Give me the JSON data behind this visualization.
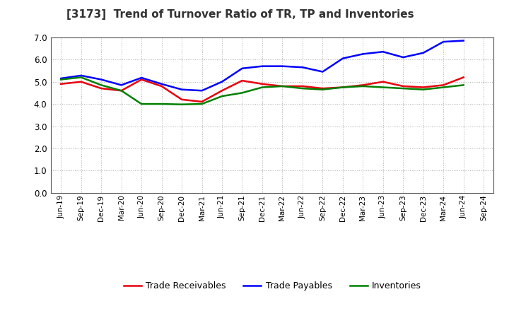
{
  "title": "[3173]  Trend of Turnover Ratio of TR, TP and Inventories",
  "labels": [
    "Jun-19",
    "Sep-19",
    "Dec-19",
    "Mar-20",
    "Jun-20",
    "Sep-20",
    "Dec-20",
    "Mar-21",
    "Jun-21",
    "Sep-21",
    "Dec-21",
    "Mar-22",
    "Jun-22",
    "Sep-22",
    "Dec-22",
    "Mar-23",
    "Jun-23",
    "Sep-23",
    "Dec-23",
    "Mar-24",
    "Jun-24",
    "Sep-24"
  ],
  "trade_receivables": [
    4.9,
    5.0,
    4.7,
    4.6,
    5.1,
    4.8,
    4.2,
    4.1,
    4.6,
    5.05,
    4.9,
    4.8,
    4.8,
    4.7,
    4.75,
    4.85,
    5.0,
    4.8,
    4.75,
    4.85,
    5.2,
    null
  ],
  "trade_payables": [
    5.15,
    5.28,
    5.1,
    4.85,
    5.18,
    4.9,
    4.65,
    4.6,
    5.0,
    5.6,
    5.7,
    5.7,
    5.65,
    5.45,
    6.05,
    6.25,
    6.35,
    6.1,
    6.3,
    6.8,
    6.85,
    null
  ],
  "inventories": [
    5.1,
    5.2,
    4.85,
    4.6,
    4.0,
    4.0,
    3.98,
    4.0,
    4.35,
    4.5,
    4.75,
    4.8,
    4.7,
    4.65,
    4.75,
    4.8,
    4.75,
    4.7,
    4.65,
    4.75,
    4.85,
    null
  ],
  "tr_color": "#e8000d",
  "tp_color": "#0000ff",
  "inv_color": "#008000",
  "ylim": [
    0.0,
    7.0
  ],
  "yticks": [
    0.0,
    1.0,
    2.0,
    3.0,
    4.0,
    5.0,
    6.0,
    7.0
  ],
  "legend_labels": [
    "Trade Receivables",
    "Trade Payables",
    "Inventories"
  ],
  "bg_color": "#ffffff",
  "grid_color": "#b0b0b0",
  "linewidth": 1.8
}
